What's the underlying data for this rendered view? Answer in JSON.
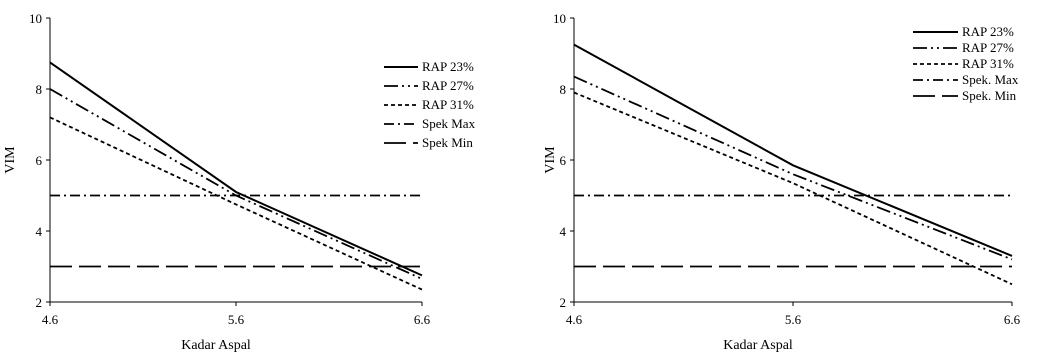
{
  "chart_data": [
    {
      "type": "line",
      "title": "",
      "xlabel": "Kadar Aspal",
      "ylabel": "VIM",
      "xlim": [
        4.6,
        6.6
      ],
      "ylim": [
        2,
        10
      ],
      "xticks": [
        "4.6",
        "5.6",
        "6.6"
      ],
      "yticks": [
        "2",
        "4",
        "6",
        "8",
        "10"
      ],
      "grid": false,
      "legend_position": "right",
      "series": [
        {
          "name": "RAP 23%",
          "style": "solid",
          "x": [
            4.6,
            5.6,
            6.6
          ],
          "y": [
            8.75,
            5.1,
            2.75
          ]
        },
        {
          "name": "RAP 27%",
          "style": "dash-dot-dot",
          "x": [
            4.6,
            5.6,
            6.6
          ],
          "y": [
            8.0,
            5.0,
            2.65
          ]
        },
        {
          "name": "RAP 31%",
          "style": "dotted",
          "x": [
            4.6,
            5.6,
            6.6
          ],
          "y": [
            7.2,
            4.75,
            2.35
          ]
        },
        {
          "name": "Spek Max",
          "style": "dash-dot",
          "x": [
            4.6,
            6.6
          ],
          "y": [
            5,
            5
          ]
        },
        {
          "name": "Spek Min",
          "style": "long-dash",
          "x": [
            4.6,
            6.6
          ],
          "y": [
            3,
            3
          ]
        }
      ]
    },
    {
      "type": "line",
      "title": "",
      "xlabel": "Kadar Aspal",
      "ylabel": "VIM",
      "xlim": [
        4.6,
        6.6
      ],
      "ylim": [
        2,
        10
      ],
      "xticks": [
        "4.6",
        "5.6",
        "6.6"
      ],
      "yticks": [
        "2",
        "4",
        "6",
        "8",
        "10"
      ],
      "grid": false,
      "legend_position": "top-right",
      "series": [
        {
          "name": "RAP 23%",
          "style": "solid",
          "x": [
            4.6,
            5.6,
            6.6
          ],
          "y": [
            9.25,
            5.85,
            3.3
          ]
        },
        {
          "name": "RAP 27%",
          "style": "dash-dot-dot",
          "x": [
            4.6,
            5.6,
            6.6
          ],
          "y": [
            8.35,
            5.6,
            3.2
          ]
        },
        {
          "name": "RAP 31%",
          "style": "dotted",
          "x": [
            4.6,
            5.6,
            6.6
          ],
          "y": [
            7.9,
            5.35,
            2.5
          ]
        },
        {
          "name": "Spek. Max",
          "style": "dash-dot",
          "x": [
            4.6,
            6.6
          ],
          "y": [
            5,
            5
          ]
        },
        {
          "name": "Spek. Min",
          "style": "long-dash",
          "x": [
            4.6,
            6.6
          ],
          "y": [
            3,
            3
          ]
        }
      ]
    }
  ]
}
